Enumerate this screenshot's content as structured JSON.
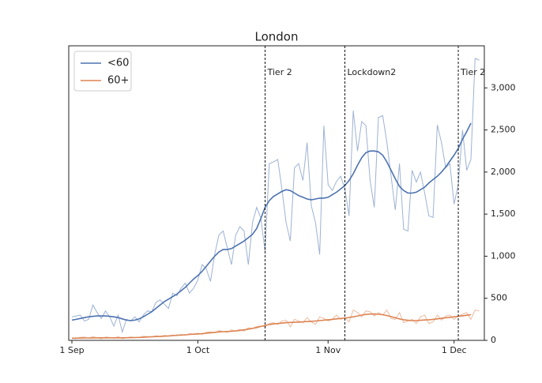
{
  "chart_data": {
    "type": "line",
    "title": "London",
    "x": [
      0,
      1,
      2,
      3,
      4,
      5,
      6,
      7,
      8,
      9,
      10,
      11,
      12,
      13,
      14,
      15,
      16,
      17,
      18,
      19,
      20,
      21,
      22,
      23,
      24,
      25,
      26,
      27,
      28,
      29,
      30,
      31,
      32,
      33,
      34,
      35,
      36,
      37,
      38,
      39,
      40,
      41,
      42,
      43,
      44,
      45,
      46,
      47,
      48,
      49,
      50,
      51,
      52,
      53,
      54,
      55,
      56,
      57,
      58,
      59,
      60,
      61,
      62,
      63,
      64,
      65,
      66,
      67,
      68,
      69,
      70,
      71,
      72,
      73,
      74,
      75,
      76,
      77,
      78,
      79,
      80,
      81,
      82,
      83,
      84,
      85,
      86,
      87,
      88,
      89,
      90,
      91,
      92,
      93,
      94,
      95,
      96,
      97
    ],
    "series": [
      {
        "name": "<60",
        "color": "#4c72b0",
        "values": [
          280,
          290,
          300,
          230,
          250,
          420,
          330,
          260,
          350,
          280,
          170,
          300,
          100,
          250,
          230,
          280,
          220,
          300,
          350,
          340,
          450,
          480,
          430,
          380,
          560,
          530,
          620,
          680,
          560,
          620,
          720,
          900,
          850,
          700,
          1020,
          1250,
          1300,
          1100,
          900,
          1250,
          1350,
          1300,
          900,
          1400,
          1580,
          1450,
          1050,
          2100,
          2120,
          2150,
          1800,
          1400,
          1180,
          2050,
          2100,
          1900,
          2350,
          1600,
          1400,
          1020,
          2550,
          1850,
          1780,
          1890,
          1950,
          1800,
          1480,
          2730,
          2250,
          2600,
          2550,
          1900,
          1580,
          2650,
          2670,
          2350,
          1950,
          1550,
          2100,
          1320,
          1300,
          2020,
          1880,
          2000,
          1750,
          1480,
          1460,
          2560,
          2350,
          2050,
          2100,
          1620,
          1850,
          2500,
          2020,
          2150,
          3350,
          3330
        ],
        "smoothed": [
          240,
          250,
          260,
          270,
          280,
          285,
          290,
          290,
          290,
          285,
          280,
          270,
          255,
          240,
          235,
          240,
          255,
          280,
          310,
          340,
          380,
          420,
          460,
          490,
          520,
          550,
          590,
          630,
          680,
          730,
          770,
          820,
          880,
          940,
          1000,
          1050,
          1080,
          1080,
          1090,
          1120,
          1150,
          1180,
          1220,
          1260,
          1330,
          1450,
          1580,
          1660,
          1710,
          1740,
          1770,
          1790,
          1780,
          1750,
          1720,
          1700,
          1680,
          1670,
          1680,
          1690,
          1690,
          1700,
          1730,
          1760,
          1800,
          1840,
          1900,
          1980,
          2080,
          2170,
          2230,
          2250,
          2250,
          2240,
          2200,
          2120,
          2020,
          1920,
          1830,
          1780,
          1750,
          1750,
          1760,
          1790,
          1820,
          1870,
          1910,
          1950,
          2000,
          2060,
          2130,
          2200,
          2280,
          2390,
          2480,
          2580,
          null,
          null
        ]
      },
      {
        "name": "60+",
        "color": "#dd8452",
        "values": [
          30,
          20,
          35,
          40,
          25,
          45,
          30,
          20,
          40,
          35,
          25,
          45,
          20,
          30,
          40,
          35,
          30,
          50,
          45,
          40,
          55,
          40,
          60,
          50,
          65,
          55,
          70,
          60,
          80,
          75,
          85,
          70,
          95,
          100,
          90,
          115,
          105,
          95,
          125,
          110,
          130,
          110,
          150,
          140,
          165,
          170,
          160,
          200,
          210,
          190,
          230,
          240,
          160,
          250,
          230,
          210,
          270,
          220,
          190,
          280,
          260,
          230,
          250,
          300,
          250,
          270,
          220,
          360,
          330,
          280,
          350,
          340,
          290,
          330,
          300,
          360,
          260,
          250,
          330,
          210,
          230,
          250,
          200,
          280,
          300,
          200,
          220,
          300,
          240,
          290,
          300,
          250,
          290,
          310,
          330,
          250,
          360,
          350
        ],
        "smoothed": [
          25,
          26,
          27,
          28,
          28,
          29,
          30,
          30,
          30,
          30,
          30,
          30,
          30,
          31,
          32,
          33,
          35,
          37,
          40,
          42,
          45,
          48,
          50,
          53,
          56,
          60,
          63,
          66,
          70,
          73,
          76,
          80,
          85,
          90,
          95,
          100,
          103,
          105,
          108,
          112,
          118,
          125,
          133,
          142,
          152,
          165,
          178,
          188,
          195,
          200,
          205,
          210,
          213,
          215,
          217,
          220,
          223,
          226,
          230,
          235,
          240,
          245,
          250,
          255,
          260,
          265,
          272,
          280,
          290,
          300,
          308,
          312,
          313,
          310,
          305,
          295,
          282,
          268,
          255,
          245,
          238,
          235,
          235,
          238,
          242,
          245,
          250,
          255,
          262,
          268,
          274,
          280,
          286,
          292,
          298,
          305,
          null,
          null
        ]
      }
    ],
    "xlim": [
      -0.75,
      98.2
    ],
    "xticks": [
      {
        "value": 0,
        "label": "1 Sep"
      },
      {
        "value": 30,
        "label": "1 Oct"
      },
      {
        "value": 61,
        "label": "1 Nov"
      },
      {
        "value": 91,
        "label": "1 Dec"
      }
    ],
    "ylim": [
      0,
      3500
    ],
    "yticks": [
      0,
      500,
      {
        "value": 1000,
        "label": "1,000"
      },
      {
        "value": 1500,
        "label": "1,500"
      },
      {
        "value": 2000,
        "label": "2,000"
      },
      {
        "value": 2500,
        "label": "2,500"
      },
      {
        "value": 3000,
        "label": "3,000"
      }
    ],
    "y_axis_side": "right",
    "legend": "upper left",
    "vlines": [
      {
        "x": 46,
        "label": "Tier 2"
      },
      {
        "x": 65,
        "label": "Lockdown2"
      },
      {
        "x": 92,
        "label": "Tier 2"
      }
    ]
  }
}
